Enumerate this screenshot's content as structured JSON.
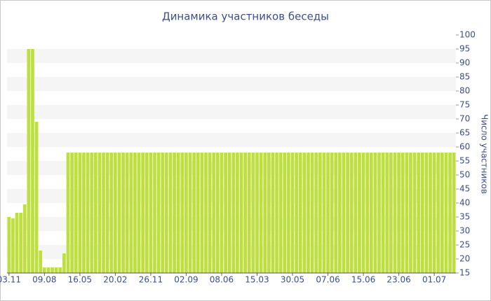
{
  "chart_data": {
    "type": "bar",
    "title": "Динамика участников беседы",
    "y_label": "Число участников",
    "color": "#bde03f",
    "grid": "bands",
    "ylim": [
      15,
      100
    ],
    "yticks": [
      15,
      20,
      25,
      30,
      35,
      40,
      45,
      50,
      55,
      60,
      65,
      70,
      75,
      80,
      85,
      90,
      95,
      100
    ],
    "categories": [
      "03.11",
      null,
      null,
      null,
      null,
      null,
      null,
      null,
      null,
      "09.08",
      null,
      null,
      null,
      null,
      null,
      null,
      null,
      null,
      "16.05",
      null,
      null,
      null,
      null,
      null,
      null,
      null,
      null,
      "20.02",
      null,
      null,
      null,
      null,
      null,
      null,
      null,
      null,
      "26.11",
      null,
      null,
      null,
      null,
      null,
      null,
      null,
      null,
      "02.09",
      null,
      null,
      null,
      null,
      null,
      null,
      null,
      null,
      "08.06",
      null,
      null,
      null,
      null,
      null,
      null,
      null,
      null,
      "15.03",
      null,
      null,
      null,
      null,
      null,
      null,
      null,
      null,
      "30.05",
      null,
      null,
      null,
      null,
      null,
      null,
      null,
      null,
      "07.06",
      null,
      null,
      null,
      null,
      null,
      null,
      null,
      null,
      "15.06",
      null,
      null,
      null,
      null,
      null,
      null,
      null,
      null,
      "23.06",
      null,
      null,
      null,
      null,
      null,
      null,
      null,
      null,
      "01.07",
      null,
      null,
      null,
      null,
      null
    ],
    "values": [
      35,
      34.5,
      36.5,
      36.5,
      39.5,
      95,
      95,
      69,
      23,
      17,
      17,
      17,
      17,
      17,
      22,
      58,
      58,
      58,
      58,
      58,
      58,
      58,
      58,
      58,
      58,
      58,
      58,
      58,
      58,
      58,
      58,
      58,
      58,
      58,
      58,
      58,
      58,
      58,
      58,
      58,
      58,
      58,
      58,
      58,
      58,
      58,
      58,
      58,
      58,
      58,
      58,
      58,
      58,
      58,
      58,
      58,
      58,
      58,
      58,
      58,
      58,
      58,
      58,
      58,
      58,
      58,
      58,
      58,
      58,
      58,
      58,
      58,
      58,
      58,
      58,
      58,
      58,
      58,
      58,
      58,
      58,
      58,
      58,
      58,
      58,
      58,
      58,
      58,
      58,
      58,
      58,
      58,
      58,
      58,
      58,
      58,
      58,
      58,
      58,
      58,
      58,
      58,
      58,
      58,
      58,
      58,
      58,
      58,
      58,
      58,
      58,
      58,
      58,
      58
    ]
  }
}
